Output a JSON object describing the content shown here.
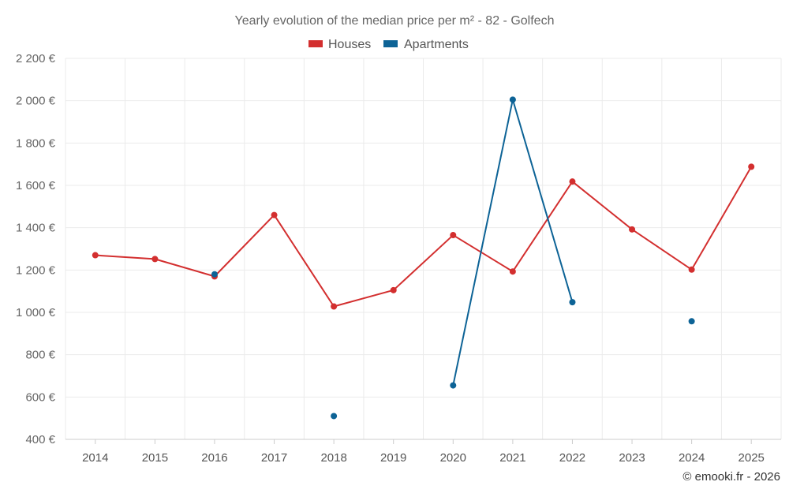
{
  "chart_data": {
    "type": "line",
    "title": "Yearly evolution of the median price per m² - 82 - Golfech",
    "categories": [
      "2014",
      "2015",
      "2016",
      "2017",
      "2018",
      "2019",
      "2020",
      "2021",
      "2022",
      "2023",
      "2024",
      "2025"
    ],
    "ylim": [
      400,
      2200
    ],
    "yticks": [
      400,
      600,
      800,
      1000,
      1200,
      1400,
      1600,
      1800,
      2000,
      2200
    ],
    "ytick_labels": [
      "400 €",
      "600 €",
      "800 €",
      "1 000 €",
      "1 200 €",
      "1 400 €",
      "1 600 €",
      "1 800 €",
      "2 000 €",
      "2 200 €"
    ],
    "grid": true,
    "legend_position": "top-center",
    "series": [
      {
        "name": "Houses",
        "color": "#d32f2f",
        "values": [
          1270,
          1252,
          1170,
          1460,
          1028,
          1105,
          1365,
          1193,
          1618,
          1392,
          1202,
          1688
        ]
      },
      {
        "name": "Apartments",
        "color": "#0d6396",
        "values": [
          null,
          null,
          1180,
          null,
          510,
          null,
          655,
          2005,
          1048,
          null,
          958,
          null
        ]
      }
    ]
  },
  "credit": "© emooki.fr - 2026"
}
